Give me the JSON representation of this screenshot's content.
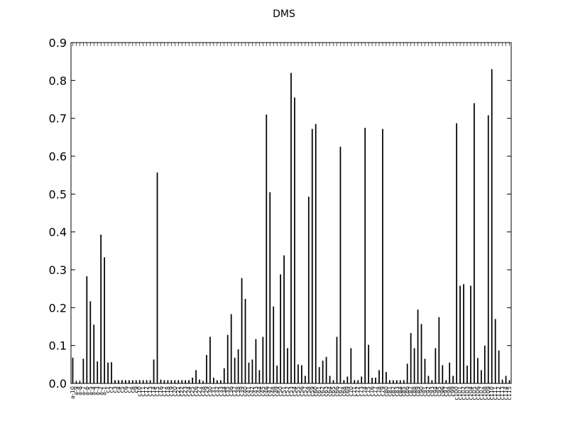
{
  "chart_data": {
    "type": "bar",
    "title": "DMS",
    "xlabel": "",
    "ylabel": "",
    "ylim": [
      0,
      0.9
    ],
    "yticks": [
      "0.0",
      "0.1",
      "0.2",
      "0.3",
      "0.4",
      "0.5",
      "0.6",
      "0.7",
      "0.8",
      "0.9"
    ],
    "grid": false,
    "bar_color": "#000000",
    "categories": [
      "a-10",
      "a-9",
      "a-8",
      "a-7",
      "a-6",
      "a-5",
      "a-4",
      "a-3",
      "a-2",
      "a-1",
      "c1",
      "c2",
      "c3",
      "c4",
      "c5",
      "c6",
      "c7",
      "c8",
      "c9",
      "c10",
      "c11",
      "c12",
      "c13",
      "c14",
      "c15",
      "c16",
      "c17",
      "c18",
      "c19",
      "c20",
      "c21",
      "c22",
      "c23",
      "c24",
      "c25",
      "c26",
      "c27",
      "c28",
      "c29",
      "c30",
      "c31",
      "c32",
      "c33",
      "c34",
      "c35",
      "c36",
      "c37",
      "c38",
      "c39",
      "c40",
      "c41",
      "c42",
      "c43",
      "c44",
      "c45",
      "c46",
      "c47",
      "c48",
      "c49",
      "c50",
      "c51",
      "c52",
      "c53",
      "c54",
      "c55",
      "c56",
      "c57",
      "c58",
      "c59",
      "c60",
      "c61",
      "c62",
      "c63",
      "c64",
      "c65",
      "c66",
      "c67",
      "c68",
      "c69",
      "c70",
      "c71",
      "c72",
      "c73",
      "c74",
      "c75",
      "c76",
      "c77",
      "c78",
      "c79",
      "c80",
      "c81",
      "c82",
      "c83",
      "c84",
      "c85",
      "c86",
      "c87",
      "c88",
      "c89",
      "c90",
      "c91",
      "c92",
      "c93",
      "c94",
      "c95",
      "c96",
      "c97",
      "c98",
      "c99",
      "c100",
      "c101",
      "c102",
      "c103",
      "c104",
      "c105",
      "c106",
      "c107",
      "c108",
      "c109",
      "c110",
      "c111",
      "c112",
      "c113",
      "c114",
      "c115"
    ],
    "values": [
      0.068,
      0.005,
      0.005,
      0.065,
      0.283,
      0.217,
      0.155,
      0.058,
      0.393,
      0.333,
      0.055,
      0.056,
      0.008,
      0.008,
      0.008,
      0.008,
      0.008,
      0.008,
      0.008,
      0.008,
      0.008,
      0.008,
      0.008,
      0.063,
      0.557,
      0.01,
      0.008,
      0.008,
      0.008,
      0.008,
      0.008,
      0.008,
      0.008,
      0.008,
      0.015,
      0.035,
      0.01,
      0.005,
      0.075,
      0.123,
      0.015,
      0.008,
      0.008,
      0.04,
      0.128,
      0.183,
      0.068,
      0.09,
      0.278,
      0.223,
      0.055,
      0.063,
      0.117,
      0.035,
      0.123,
      0.71,
      0.505,
      0.203,
      0.047,
      0.288,
      0.338,
      0.093,
      0.82,
      0.755,
      0.05,
      0.048,
      0.02,
      0.493,
      0.672,
      0.685,
      0.043,
      0.06,
      0.07,
      0.02,
      0.008,
      0.123,
      0.625,
      0.008,
      0.018,
      0.093,
      0.008,
      0.008,
      0.018,
      0.675,
      0.102,
      0.015,
      0.015,
      0.035,
      0.672,
      0.03,
      0.008,
      0.008,
      0.008,
      0.008,
      0.008,
      0.052,
      0.133,
      0.093,
      0.195,
      0.157,
      0.065,
      0.02,
      0.008,
      0.093,
      0.175,
      0.048,
      0.008,
      0.055,
      0.02,
      0.687,
      0.258,
      0.262,
      0.047,
      0.258,
      0.74,
      0.067,
      0.035,
      0.1,
      0.708,
      0.83,
      0.17,
      0.087,
      0.01,
      0.02,
      0.008
    ]
  }
}
